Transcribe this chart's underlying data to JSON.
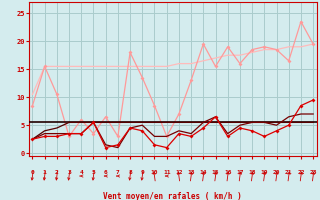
{
  "background_color": "#d4ecee",
  "grid_color": "#aacccc",
  "xlabel": "Vent moyen/en rafales ( km/h )",
  "xlabel_color": "#cc0000",
  "tick_color": "#cc0000",
  "x_ticks": [
    0,
    1,
    2,
    3,
    4,
    5,
    6,
    7,
    8,
    9,
    10,
    11,
    12,
    13,
    14,
    15,
    16,
    17,
    18,
    19,
    20,
    21,
    22,
    23
  ],
  "ylim": [
    -0.5,
    27
  ],
  "xlim": [
    -0.3,
    23.3
  ],
  "yticks": [
    0,
    5,
    10,
    15,
    20,
    25
  ],
  "line1_x": [
    0,
    1,
    2,
    3,
    4,
    5,
    6,
    7,
    8,
    9,
    10,
    11,
    12,
    13,
    14,
    15,
    16,
    17,
    18,
    19,
    20,
    21,
    22,
    23
  ],
  "line1_y": [
    8.5,
    15.5,
    10.5,
    3.0,
    6.0,
    3.5,
    6.5,
    3.0,
    18.0,
    13.5,
    8.5,
    3.0,
    7.0,
    13.0,
    19.5,
    15.5,
    19.0,
    16.0,
    18.5,
    19.0,
    18.5,
    16.5,
    23.5,
    19.5
  ],
  "line1_color": "#ff9999",
  "line2_x": [
    0,
    1,
    2,
    3,
    4,
    5,
    6,
    7,
    8,
    9,
    10,
    11,
    12,
    13,
    14,
    15,
    16,
    17,
    18,
    19,
    20,
    21,
    22,
    23
  ],
  "line2_y": [
    10.5,
    15.5,
    15.5,
    15.5,
    15.5,
    15.5,
    15.5,
    15.5,
    15.5,
    15.5,
    15.5,
    15.5,
    16.0,
    16.0,
    16.5,
    17.0,
    17.5,
    17.5,
    18.0,
    18.5,
    18.5,
    19.0,
    19.0,
    19.5
  ],
  "line2_color": "#ffbbbb",
  "line3_x": [
    0,
    1,
    2,
    3,
    4,
    5,
    6,
    7,
    8,
    9,
    10,
    11,
    12,
    13,
    14,
    15,
    16,
    17,
    18,
    19,
    20,
    21,
    22,
    23
  ],
  "line3_y": [
    2.5,
    3.0,
    3.0,
    3.5,
    3.5,
    5.5,
    1.0,
    1.5,
    4.5,
    4.0,
    1.5,
    1.0,
    3.5,
    3.0,
    4.5,
    6.5,
    3.0,
    4.5,
    4.0,
    3.0,
    4.0,
    5.0,
    8.5,
    9.5
  ],
  "line3_color": "#dd0000",
  "line4_y": 5.5,
  "line4_color": "#220000",
  "line5_x": [
    0,
    1,
    2,
    3,
    4,
    5,
    6,
    7,
    8,
    9,
    10,
    11,
    12,
    13,
    14,
    15,
    16,
    17,
    18,
    19,
    20,
    21,
    22,
    23
  ],
  "line5_y": [
    2.5,
    3.5,
    3.5,
    3.5,
    3.5,
    5.5,
    1.5,
    1.0,
    4.5,
    5.0,
    3.0,
    3.0,
    4.0,
    3.5,
    5.5,
    6.5,
    3.5,
    5.0,
    5.5,
    5.5,
    5.0,
    6.5,
    7.0,
    7.0
  ],
  "line5_color": "#770000",
  "line6_x": [
    0,
    1,
    2,
    3,
    4,
    5,
    6,
    7,
    8,
    9,
    10,
    11,
    12,
    13,
    14,
    15,
    16,
    17,
    18,
    19,
    20,
    21,
    22,
    23
  ],
  "line6_y": [
    2.5,
    4.0,
    4.5,
    5.5,
    5.5,
    5.5,
    5.5,
    5.5,
    5.5,
    5.5,
    5.5,
    5.5,
    5.5,
    5.5,
    5.5,
    5.5,
    5.5,
    5.5,
    5.5,
    5.5,
    5.5,
    5.5,
    5.5,
    5.5
  ],
  "line6_color": "#550000",
  "arrow_dirs": [
    225,
    225,
    225,
    225,
    270,
    225,
    270,
    270,
    225,
    225,
    315,
    270,
    315,
    45,
    45,
    45,
    45,
    45,
    45,
    45,
    45,
    45,
    45,
    45
  ]
}
